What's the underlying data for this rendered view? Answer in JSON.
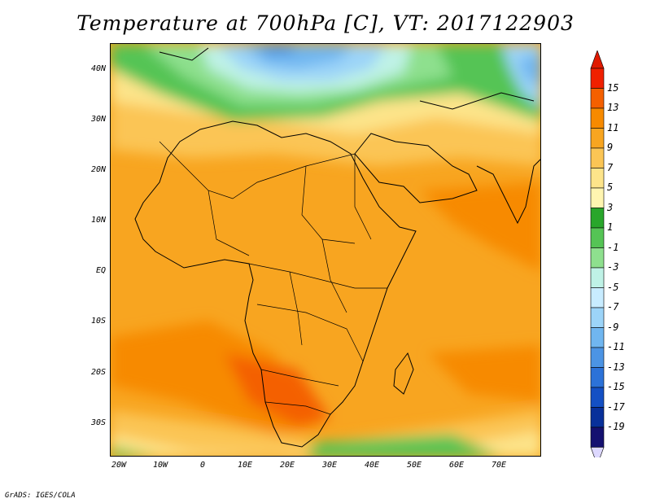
{
  "title": "Temperature at 700hPa [C], VT: 2017122903",
  "credit": "GrADS: IGES/COLA",
  "map": {
    "lat_labels": [
      "40N",
      "30N",
      "20N",
      "10N",
      "EQ",
      "10S",
      "20S",
      "30S"
    ],
    "lon_labels": [
      "20W",
      "10W",
      "0",
      "10E",
      "20E",
      "30E",
      "40E",
      "50E",
      "60E",
      "70E"
    ]
  },
  "colorbar": {
    "labels": [
      "15",
      "13",
      "11",
      "9",
      "7",
      "5",
      "3",
      "1",
      "-1",
      "-3",
      "-5",
      "-7",
      "-9",
      "-11",
      "-13",
      "-15",
      "-17",
      "-19"
    ],
    "colors": [
      "#f02000",
      "#f46000",
      "#f78a00",
      "#f8a520",
      "#fbc555",
      "#fde48a",
      "#fff5b0",
      "#29a62b",
      "#55c455",
      "#8ee08e",
      "#bff2e6",
      "#c8ecff",
      "#9cd4f8",
      "#70b6f0",
      "#4c94e4",
      "#2c72d8",
      "#1450c4",
      "#08309a",
      "#141070"
    ],
    "over_color": "#e01a00",
    "under_color": "#ddd8ff"
  }
}
